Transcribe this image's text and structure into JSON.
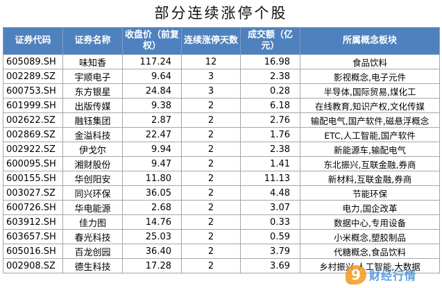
{
  "title": "部分连续涨停个股",
  "table": {
    "headers": [
      "证券代码",
      "证券名称",
      "收盘价（前复权）",
      "连续涨停天数",
      "成交额（亿元）",
      "所属概念板块"
    ],
    "rows": [
      [
        "605089.SH",
        "味知香",
        "117.24",
        "12",
        "16.98",
        "食品饮料"
      ],
      [
        "002289.SZ",
        "宇顺电子",
        "9.64",
        "3",
        "2.38",
        "影视概念,电子元件"
      ],
      [
        "600753.SH",
        "东方银星",
        "24.84",
        "3",
        "0.28",
        "半导体,国际贸易,煤化工"
      ],
      [
        "601999.SH",
        "出版传媒",
        "9.38",
        "2",
        "6.18",
        "在线教育,知识产权,文化传媒"
      ],
      [
        "002622.SZ",
        "融钰集团",
        "2.87",
        "2",
        "2.76",
        "输配电气,国产软件,磁悬浮概念"
      ],
      [
        "002869.SZ",
        "金溢科技",
        "22.47",
        "2",
        "1.76",
        "ETC,人工智能,国产软件"
      ],
      [
        "002922.SZ",
        "伊戈尔",
        "9.94",
        "2",
        "2.38",
        "新能源车,输配电气"
      ],
      [
        "600095.SH",
        "湘财股份",
        "9.47",
        "2",
        "1.41",
        "东北振兴,互联金融,券商"
      ],
      [
        "600155.SH",
        "华创阳安",
        "11.80",
        "2",
        "11.13",
        "新材料,互联金融,券商"
      ],
      [
        "003027.SZ",
        "同兴环保",
        "36.05",
        "2",
        "4.48",
        "节能环保"
      ],
      [
        "600726.SH",
        "华电能源",
        "2.68",
        "2",
        "3.07",
        "电力,国企改革"
      ],
      [
        "603912.SH",
        "佳力图",
        "14.76",
        "2",
        "0.33",
        "数据中心,专用设备"
      ],
      [
        "603657.SH",
        "春光科技",
        "25.03",
        "2",
        "0.59",
        "小米概念,塑胶制品"
      ],
      [
        "605016.SH",
        "百龙创园",
        "36.40",
        "2",
        "3.79",
        "代糖概念,食品饮料"
      ],
      [
        "002908.SZ",
        "德生科技",
        "17.28",
        "2",
        "3.69",
        "乡村振兴,人工智能,大数据"
      ]
    ]
  },
  "watermark": {
    "badge": "9",
    "text": "财经行情"
  }
}
